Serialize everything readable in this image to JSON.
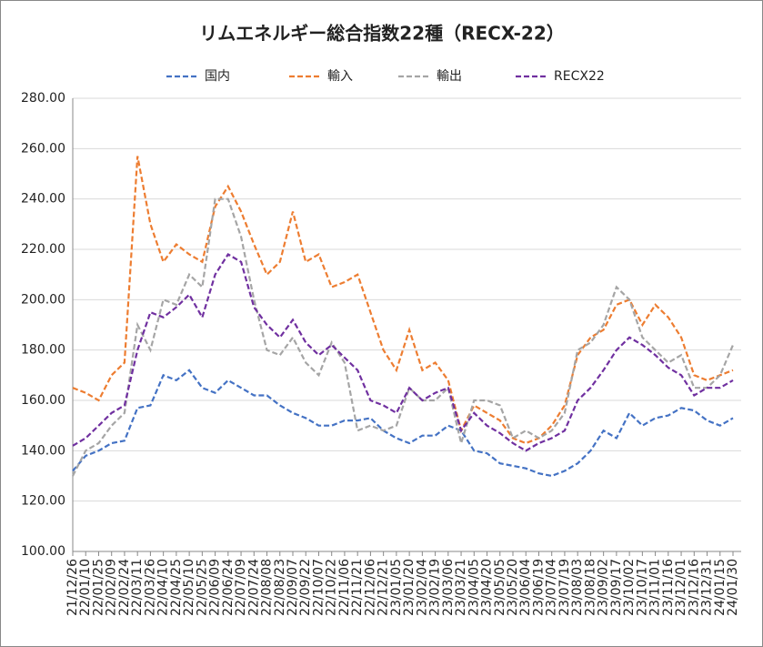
{
  "chart_data": {
    "type": "line",
    "title": "リムエネルギー総合指数22種（RECX-22）",
    "categories": [
      "21/12/26",
      "22/01/10",
      "22/01/25",
      "22/02/09",
      "22/02/24",
      "22/03/11",
      "22/03/26",
      "22/04/10",
      "22/04/25",
      "22/05/10",
      "22/05/25",
      "22/06/09",
      "22/06/24",
      "22/07/09",
      "22/07/24",
      "22/08/08",
      "22/08/23",
      "22/09/07",
      "22/09/22",
      "22/10/07",
      "22/10/22",
      "22/11/06",
      "22/11/21",
      "22/12/06",
      "22/12/21",
      "23/01/05",
      "23/01/20",
      "23/02/04",
      "23/02/19",
      "23/03/06",
      "23/03/21",
      "23/04/05",
      "23/04/20",
      "23/05/05",
      "23/05/20",
      "23/06/04",
      "23/06/19",
      "23/07/04",
      "23/07/19",
      "23/08/03",
      "23/08/18",
      "23/09/02",
      "23/09/17",
      "23/10/02",
      "23/10/17",
      "23/11/01",
      "23/11/16",
      "23/12/01",
      "23/12/16",
      "23/12/31",
      "24/01/15",
      "24/01/30"
    ],
    "series": [
      {
        "name": "国内",
        "color": "#4472c4",
        "values": [
          132,
          138,
          140,
          143,
          144,
          157,
          158,
          170,
          168,
          172,
          165,
          163,
          168,
          165,
          162,
          162,
          158,
          155,
          153,
          150,
          150,
          152,
          152,
          153,
          148,
          145,
          143,
          146,
          146,
          150,
          148,
          140,
          139,
          135,
          134,
          133,
          131,
          130,
          132,
          135,
          140,
          148,
          145,
          155,
          150,
          153,
          154,
          157,
          156,
          152,
          150,
          153
        ]
      },
      {
        "name": "輸入",
        "color": "#ed7d31",
        "values": [
          165,
          163,
          160,
          170,
          175,
          257,
          230,
          215,
          222,
          218,
          215,
          237,
          245,
          235,
          222,
          210,
          215,
          235,
          215,
          218,
          205,
          207,
          210,
          195,
          180,
          172,
          188,
          172,
          175,
          168,
          148,
          158,
          155,
          152,
          145,
          143,
          145,
          150,
          158,
          178,
          185,
          188,
          198,
          200,
          190,
          198,
          193,
          185,
          170,
          168,
          170,
          172
        ]
      },
      {
        "name": "輸出",
        "color": "#a5a5a5",
        "values": [
          130,
          140,
          143,
          150,
          155,
          190,
          180,
          200,
          198,
          210,
          205,
          240,
          240,
          225,
          200,
          180,
          178,
          185,
          175,
          170,
          183,
          175,
          148,
          150,
          148,
          150,
          165,
          160,
          160,
          165,
          143,
          160,
          160,
          158,
          145,
          148,
          145,
          148,
          155,
          180,
          183,
          190,
          205,
          200,
          185,
          180,
          175,
          178,
          165,
          165,
          170,
          182
        ]
      },
      {
        "name": "RECX22",
        "color": "#7030a0",
        "values": [
          142,
          145,
          150,
          155,
          158,
          180,
          195,
          193,
          197,
          202,
          193,
          210,
          218,
          215,
          197,
          190,
          185,
          192,
          183,
          178,
          182,
          177,
          172,
          160,
          158,
          155,
          165,
          160,
          163,
          165,
          148,
          155,
          150,
          147,
          143,
          140,
          143,
          145,
          148,
          160,
          165,
          172,
          180,
          185,
          182,
          178,
          173,
          170,
          162,
          165,
          165,
          168
        ]
      }
    ],
    "ylim": [
      100,
      280
    ],
    "yticks": [
      {
        "value": 100,
        "label": "100.00"
      },
      {
        "value": 120,
        "label": "120.00"
      },
      {
        "value": 140,
        "label": "140.00"
      },
      {
        "value": 160,
        "label": "160.00"
      },
      {
        "value": 180,
        "label": "180.00"
      },
      {
        "value": 200,
        "label": "200.00"
      },
      {
        "value": 220,
        "label": "220.00"
      },
      {
        "value": 240,
        "label": "240.00"
      },
      {
        "value": 260,
        "label": "260.00"
      },
      {
        "value": 280,
        "label": "280.00"
      }
    ],
    "grid": true,
    "legend": "top"
  }
}
